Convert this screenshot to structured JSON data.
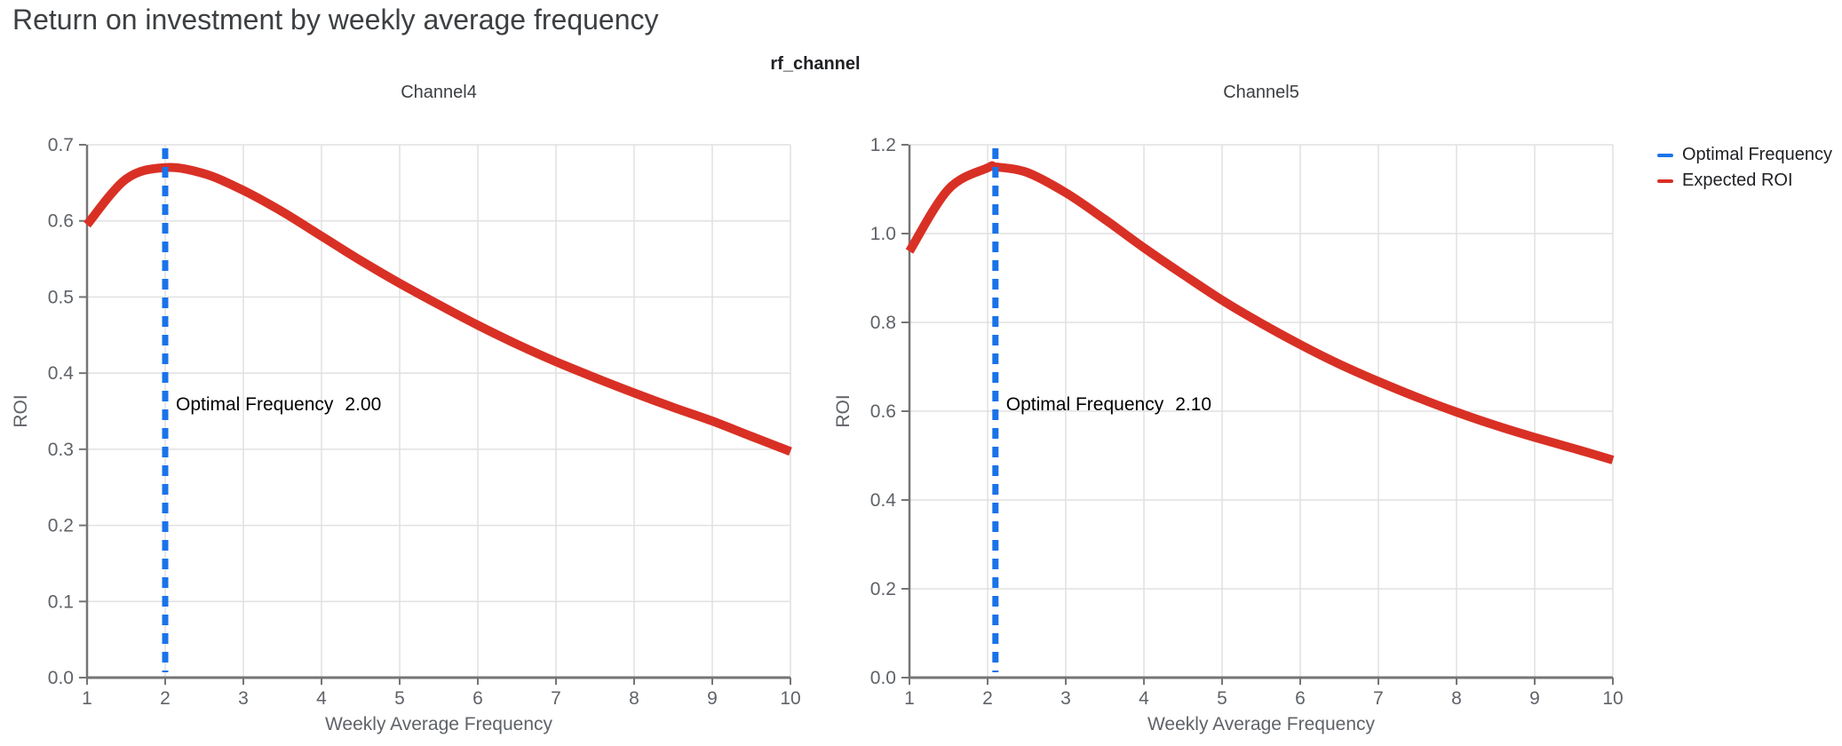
{
  "figure": {
    "title": "Return on investment by weekly average frequency",
    "facet_label": "rf_channel",
    "background": "#ffffff"
  },
  "legend": {
    "position": "right",
    "items": [
      {
        "label": "Optimal Frequency",
        "color": "#1a73e8"
      },
      {
        "label": "Expected ROI",
        "color": "#d93025"
      }
    ]
  },
  "chart_data": [
    {
      "type": "line",
      "title": "Channel4",
      "xlabel": "Weekly Average Frequency",
      "ylabel": "ROI",
      "xlim": [
        1,
        10
      ],
      "ylim": [
        0,
        0.7
      ],
      "xticks": [
        1,
        2,
        3,
        4,
        5,
        6,
        7,
        8,
        9,
        10
      ],
      "yticks": [
        0.0,
        0.1,
        0.2,
        0.3,
        0.4,
        0.5,
        0.6,
        0.7
      ],
      "grid": true,
      "optimal_frequency": {
        "label": "Optimal Frequency",
        "value": "2.00",
        "x": 2.0,
        "color": "#1a73e8"
      },
      "series": [
        {
          "name": "Expected ROI",
          "color": "#d93025",
          "x": [
            1,
            1.5,
            2,
            2.5,
            3,
            3.5,
            4,
            4.5,
            5,
            5.5,
            6,
            6.5,
            7,
            7.5,
            8,
            8.5,
            9,
            9.5,
            10
          ],
          "y": [
            0.595,
            0.655,
            0.67,
            0.662,
            0.64,
            0.612,
            0.58,
            0.548,
            0.518,
            0.49,
            0.463,
            0.438,
            0.415,
            0.394,
            0.374,
            0.355,
            0.337,
            0.317,
            0.297
          ]
        }
      ]
    },
    {
      "type": "line",
      "title": "Channel5",
      "xlabel": "Weekly Average Frequency",
      "ylabel": "ROI",
      "xlim": [
        1,
        10
      ],
      "ylim": [
        0,
        1.2
      ],
      "xticks": [
        1,
        2,
        3,
        4,
        5,
        6,
        7,
        8,
        9,
        10
      ],
      "yticks": [
        0.0,
        0.2,
        0.4,
        0.6,
        0.8,
        1.0,
        1.2
      ],
      "grid": true,
      "optimal_frequency": {
        "label": "Optimal Frequency",
        "value": "2.10",
        "x": 2.1,
        "color": "#1a73e8"
      },
      "series": [
        {
          "name": "Expected ROI",
          "color": "#d93025",
          "x": [
            1,
            1.5,
            2,
            2.1,
            2.5,
            3,
            3.5,
            4,
            4.5,
            5,
            5.5,
            6,
            6.5,
            7,
            7.5,
            8,
            8.5,
            9,
            9.5,
            10
          ],
          "y": [
            0.96,
            1.1,
            1.148,
            1.15,
            1.138,
            1.092,
            1.032,
            0.968,
            0.908,
            0.85,
            0.798,
            0.75,
            0.706,
            0.667,
            0.631,
            0.598,
            0.568,
            0.541,
            0.516,
            0.49
          ]
        }
      ]
    }
  ]
}
